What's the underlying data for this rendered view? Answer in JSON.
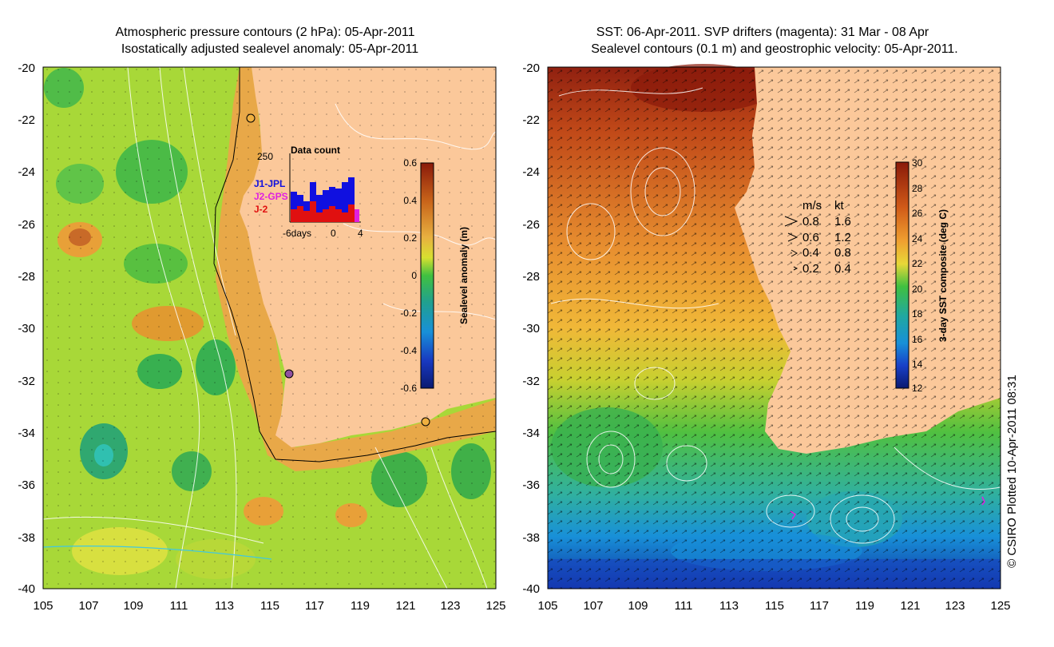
{
  "left_panel": {
    "title_line1": "Atmospheric pressure contours (2 hPa): 05-Apr-2011",
    "title_line2": "Isostatically adjusted sealevel anomaly: 05-Apr-2011",
    "x_ticks": [
      "105",
      "107",
      "109",
      "111",
      "113",
      "115",
      "117",
      "119",
      "121",
      "123",
      "125"
    ],
    "y_ticks": [
      "-20",
      "-22",
      "-24",
      "-26",
      "-28",
      "-30",
      "-32",
      "-34",
      "-36",
      "-38",
      "-40"
    ],
    "colorbar": {
      "label": "Sealevel anomaly (m)",
      "ticks": [
        "0.6",
        "0.4",
        "0.2",
        "0",
        "-0.2",
        "-0.4",
        "-0.6"
      ]
    },
    "inset": {
      "title": "Data count",
      "y_max": "250",
      "x_ticks": [
        "-6days",
        "0",
        "4"
      ],
      "legend": [
        {
          "label": "J1-JPL",
          "color": "#1010e0"
        },
        {
          "label": "J2-GPS",
          "color": "#e020e0"
        },
        {
          "label": "J-2",
          "color": "#e01010"
        }
      ]
    }
  },
  "right_panel": {
    "title_line1": "SST: 06-Apr-2011. SVP drifters (magenta): 31 Mar - 08 Apr",
    "title_line2": "Sealevel contours (0.1 m) and geostrophic velocity: 05-Apr-2011.",
    "x_ticks": [
      "105",
      "107",
      "109",
      "111",
      "113",
      "115",
      "117",
      "119",
      "121",
      "123",
      "125"
    ],
    "y_ticks": [
      "-20",
      "-22",
      "-24",
      "-26",
      "-28",
      "-30",
      "-32",
      "-34",
      "-36",
      "-38",
      "-40"
    ],
    "colorbar": {
      "label": "3-day SST composite (deg C)",
      "ticks": [
        "30",
        "28",
        "26",
        "24",
        "22",
        "20",
        "18",
        "16",
        "14",
        "12"
      ]
    },
    "speed_legend": {
      "header_ms": "m/s",
      "header_kt": "kt",
      "rows": [
        {
          "ms": "0.8",
          "kt": "1.6"
        },
        {
          "ms": "0.6",
          "kt": "1.2"
        },
        {
          "ms": "0.4",
          "kt": "0.8"
        },
        {
          "ms": "0.2",
          "kt": "0.4"
        }
      ]
    }
  },
  "credit": "© CSIRO Plotted 10-Apr-2011 08:31",
  "colors": {
    "land": "#fbc89a",
    "sla_high": "#a0300a",
    "sla_low": "#0a1a80",
    "sst_high": "#8a1a0a",
    "sst_low": "#102080",
    "drifter": "#e020e0"
  }
}
